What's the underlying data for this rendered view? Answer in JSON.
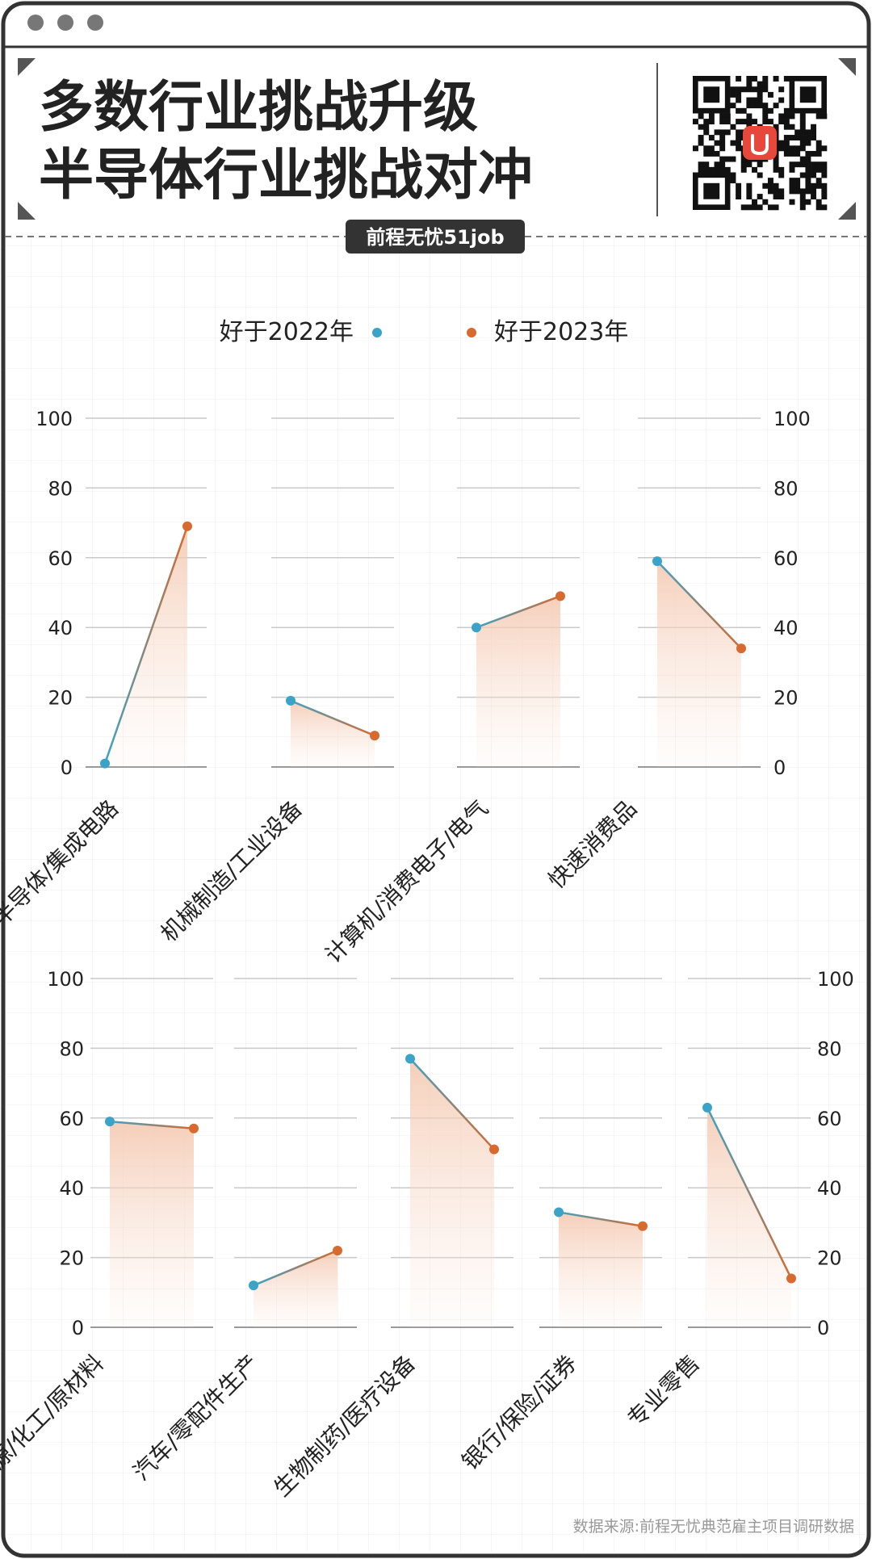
{
  "header": {
    "title_line1": "多数行业挑战升级",
    "title_line2": "半导体行业挑战对冲",
    "brand": "前程无忧51job",
    "qr_icon": "qr-code-icon"
  },
  "legend": {
    "series1": "好于2022年",
    "series2": "好于2023年"
  },
  "colors": {
    "series1": "#3ba3c7",
    "series2": "#d66a2f",
    "fill": "#f6d3c0",
    "frame": "#333333"
  },
  "source": "数据来源:前程无忧典范雇主项目调研数据",
  "chart_data": {
    "type": "line",
    "ylim": [
      0,
      100
    ],
    "yticks": [
      0,
      20,
      40,
      60,
      80,
      100
    ],
    "series_names": [
      "好于2022年",
      "好于2023年"
    ],
    "rows": [
      {
        "categories": [
          "半导体/集成电路",
          "机械制造/工业设备",
          "计算机/消费电子/电气",
          "快速消费品"
        ],
        "values": [
          [
            1,
            69
          ],
          [
            19,
            9
          ],
          [
            40,
            49
          ],
          [
            59,
            34
          ]
        ]
      },
      {
        "categories": [
          "能源/化工/原材料",
          "汽车/零配件生产",
          "生物制药/医疗设备",
          "银行/保险/证券",
          "专业零售"
        ],
        "values": [
          [
            59,
            57
          ],
          [
            12,
            22
          ],
          [
            77,
            51
          ],
          [
            33,
            29
          ],
          [
            63,
            14
          ]
        ]
      }
    ]
  }
}
